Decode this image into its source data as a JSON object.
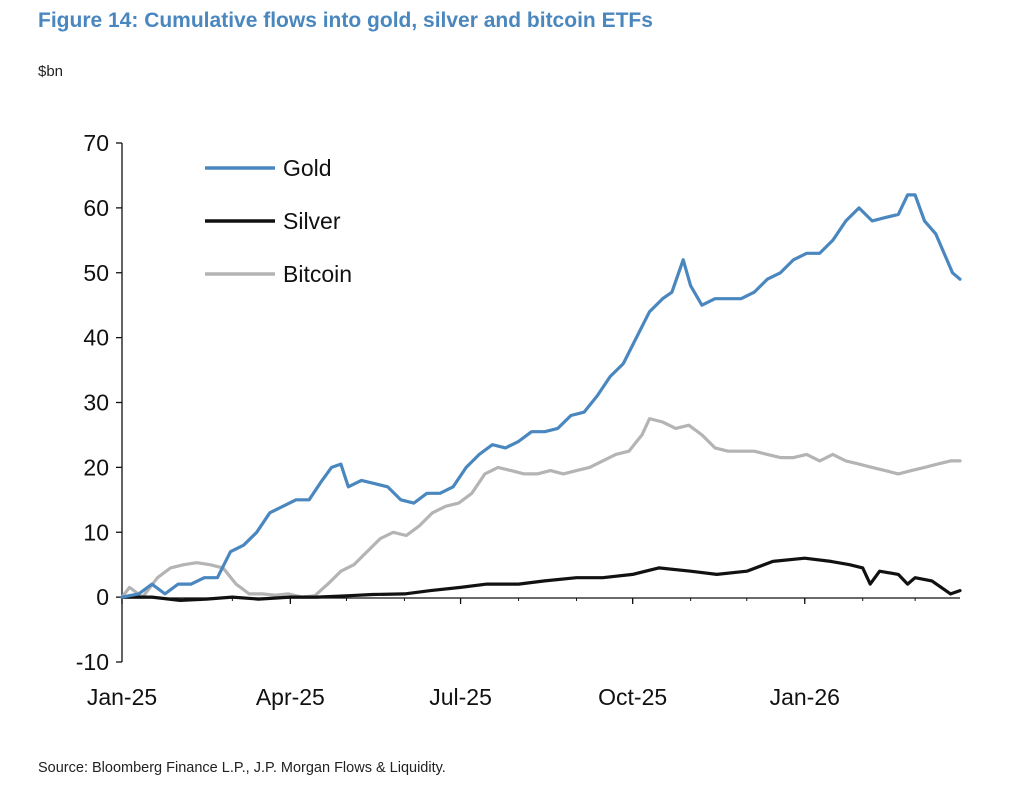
{
  "figure": {
    "title": "Figure 14: Cumulative flows into gold, silver and bitcoin ETFs",
    "unit": "$bn",
    "source": "Source: Bloomberg Finance L.P., J.P. Morgan Flows & Liquidity."
  },
  "chart_data": {
    "type": "line",
    "title": "Figure 14: Cumulative flows into gold, silver and bitcoin ETFs",
    "ylabel": "$bn",
    "xlabel": "",
    "ylim": [
      -10,
      70
    ],
    "yticks": [
      -10,
      0,
      10,
      20,
      30,
      40,
      50,
      60,
      70
    ],
    "xlim": [
      "2025-01-01",
      "2026-03-25"
    ],
    "xticks": [
      {
        "date": "2025-01-01",
        "label": "Jan-25"
      },
      {
        "date": "2025-04-01",
        "label": "Apr-25"
      },
      {
        "date": "2025-07-01",
        "label": "Jul-25"
      },
      {
        "date": "2025-10-01",
        "label": "Oct-25"
      },
      {
        "date": "2026-01-01",
        "label": "Jan-26"
      }
    ],
    "legend_position": "top-left",
    "grid": false,
    "series": [
      {
        "name": "Gold",
        "color": "#4a87bf",
        "points": [
          [
            "2025-01-01",
            0
          ],
          [
            "2025-01-10",
            0.5
          ],
          [
            "2025-01-17",
            2
          ],
          [
            "2025-01-24",
            0.5
          ],
          [
            "2025-01-31",
            2
          ],
          [
            "2025-02-07",
            2
          ],
          [
            "2025-02-14",
            3
          ],
          [
            "2025-02-21",
            3
          ],
          [
            "2025-02-28",
            7
          ],
          [
            "2025-03-07",
            8
          ],
          [
            "2025-03-14",
            10
          ],
          [
            "2025-03-21",
            13
          ],
          [
            "2025-03-28",
            14
          ],
          [
            "2025-04-04",
            15
          ],
          [
            "2025-04-11",
            15
          ],
          [
            "2025-04-18",
            18
          ],
          [
            "2025-04-23",
            20
          ],
          [
            "2025-04-28",
            20.5
          ],
          [
            "2025-05-02",
            17
          ],
          [
            "2025-05-09",
            18
          ],
          [
            "2025-05-16",
            17.5
          ],
          [
            "2025-05-23",
            17
          ],
          [
            "2025-05-30",
            15
          ],
          [
            "2025-06-06",
            14.5
          ],
          [
            "2025-06-13",
            16
          ],
          [
            "2025-06-20",
            16
          ],
          [
            "2025-06-27",
            17
          ],
          [
            "2025-07-04",
            20
          ],
          [
            "2025-07-11",
            22
          ],
          [
            "2025-07-18",
            23.5
          ],
          [
            "2025-07-25",
            23
          ],
          [
            "2025-08-01",
            24
          ],
          [
            "2025-08-08",
            25.5
          ],
          [
            "2025-08-15",
            25.5
          ],
          [
            "2025-08-22",
            26
          ],
          [
            "2025-08-29",
            28
          ],
          [
            "2025-09-05",
            28.5
          ],
          [
            "2025-09-12",
            31
          ],
          [
            "2025-09-19",
            34
          ],
          [
            "2025-09-26",
            36
          ],
          [
            "2025-10-03",
            40
          ],
          [
            "2025-10-10",
            44
          ],
          [
            "2025-10-17",
            46
          ],
          [
            "2025-10-22",
            47
          ],
          [
            "2025-10-28",
            52
          ],
          [
            "2025-11-01",
            48
          ],
          [
            "2025-11-07",
            45
          ],
          [
            "2025-11-14",
            46
          ],
          [
            "2025-11-21",
            46
          ],
          [
            "2025-11-28",
            46
          ],
          [
            "2025-12-05",
            47
          ],
          [
            "2025-12-12",
            49
          ],
          [
            "2025-12-19",
            50
          ],
          [
            "2025-12-26",
            52
          ],
          [
            "2026-01-02",
            53
          ],
          [
            "2026-01-09",
            53
          ],
          [
            "2026-01-16",
            55
          ],
          [
            "2026-01-23",
            58
          ],
          [
            "2026-01-30",
            60
          ],
          [
            "2026-02-06",
            58
          ],
          [
            "2026-02-13",
            58.5
          ],
          [
            "2026-02-20",
            59
          ],
          [
            "2026-02-25",
            62
          ],
          [
            "2026-03-01",
            62
          ],
          [
            "2026-03-06",
            58
          ],
          [
            "2026-03-12",
            56
          ],
          [
            "2026-03-18",
            52
          ],
          [
            "2026-03-21",
            50
          ],
          [
            "2026-03-25",
            49
          ]
        ]
      },
      {
        "name": "Silver",
        "color": "#111111",
        "points": [
          [
            "2025-01-01",
            0
          ],
          [
            "2025-01-17",
            0
          ],
          [
            "2025-02-01",
            -0.5
          ],
          [
            "2025-02-15",
            -0.3
          ],
          [
            "2025-03-01",
            0
          ],
          [
            "2025-03-15",
            -0.3
          ],
          [
            "2025-04-01",
            0
          ],
          [
            "2025-04-15",
            0
          ],
          [
            "2025-05-01",
            0.2
          ],
          [
            "2025-05-15",
            0.4
          ],
          [
            "2025-06-01",
            0.5
          ],
          [
            "2025-06-15",
            1
          ],
          [
            "2025-07-01",
            1.5
          ],
          [
            "2025-07-15",
            2
          ],
          [
            "2025-08-01",
            2
          ],
          [
            "2025-08-15",
            2.5
          ],
          [
            "2025-09-01",
            3
          ],
          [
            "2025-09-15",
            3
          ],
          [
            "2025-10-01",
            3.5
          ],
          [
            "2025-10-15",
            4.5
          ],
          [
            "2025-11-01",
            4
          ],
          [
            "2025-11-15",
            3.5
          ],
          [
            "2025-12-01",
            4
          ],
          [
            "2025-12-15",
            5.5
          ],
          [
            "2026-01-01",
            6
          ],
          [
            "2026-01-15",
            5.5
          ],
          [
            "2026-01-25",
            5
          ],
          [
            "2026-02-01",
            4.5
          ],
          [
            "2026-02-05",
            2
          ],
          [
            "2026-02-10",
            4
          ],
          [
            "2026-02-20",
            3.5
          ],
          [
            "2026-02-25",
            2
          ],
          [
            "2026-03-01",
            3
          ],
          [
            "2026-03-10",
            2.5
          ],
          [
            "2026-03-20",
            0.5
          ],
          [
            "2026-03-25",
            1
          ]
        ]
      },
      {
        "name": "Bitcoin",
        "color": "#b4b4b4",
        "points": [
          [
            "2025-01-01",
            0
          ],
          [
            "2025-01-05",
            1.5
          ],
          [
            "2025-01-12",
            0
          ],
          [
            "2025-01-20",
            3
          ],
          [
            "2025-01-27",
            4.5
          ],
          [
            "2025-02-03",
            5
          ],
          [
            "2025-02-10",
            5.3
          ],
          [
            "2025-02-17",
            5
          ],
          [
            "2025-02-24",
            4.5
          ],
          [
            "2025-03-03",
            2
          ],
          [
            "2025-03-10",
            0.5
          ],
          [
            "2025-03-17",
            0.5
          ],
          [
            "2025-03-24",
            0.3
          ],
          [
            "2025-03-31",
            0.5
          ],
          [
            "2025-04-07",
            0
          ],
          [
            "2025-04-14",
            0.2
          ],
          [
            "2025-04-21",
            2
          ],
          [
            "2025-04-28",
            4
          ],
          [
            "2025-05-05",
            5
          ],
          [
            "2025-05-12",
            7
          ],
          [
            "2025-05-19",
            9
          ],
          [
            "2025-05-26",
            10
          ],
          [
            "2025-06-02",
            9.5
          ],
          [
            "2025-06-09",
            11
          ],
          [
            "2025-06-16",
            13
          ],
          [
            "2025-06-23",
            14
          ],
          [
            "2025-06-30",
            14.5
          ],
          [
            "2025-07-07",
            16
          ],
          [
            "2025-07-14",
            19
          ],
          [
            "2025-07-21",
            20
          ],
          [
            "2025-07-28",
            19.5
          ],
          [
            "2025-08-04",
            19
          ],
          [
            "2025-08-11",
            19
          ],
          [
            "2025-08-18",
            19.5
          ],
          [
            "2025-08-25",
            19
          ],
          [
            "2025-09-01",
            19.5
          ],
          [
            "2025-09-08",
            20
          ],
          [
            "2025-09-15",
            21
          ],
          [
            "2025-09-22",
            22
          ],
          [
            "2025-09-29",
            22.5
          ],
          [
            "2025-10-06",
            25
          ],
          [
            "2025-10-10",
            27.5
          ],
          [
            "2025-10-17",
            27
          ],
          [
            "2025-10-24",
            26
          ],
          [
            "2025-10-31",
            26.5
          ],
          [
            "2025-11-07",
            25
          ],
          [
            "2025-11-14",
            23
          ],
          [
            "2025-11-21",
            22.5
          ],
          [
            "2025-11-28",
            22.5
          ],
          [
            "2025-12-05",
            22.5
          ],
          [
            "2025-12-12",
            22
          ],
          [
            "2025-12-19",
            21.5
          ],
          [
            "2025-12-26",
            21.5
          ],
          [
            "2026-01-02",
            22
          ],
          [
            "2026-01-09",
            21
          ],
          [
            "2026-01-16",
            22
          ],
          [
            "2026-01-23",
            21
          ],
          [
            "2026-01-30",
            20.5
          ],
          [
            "2026-02-06",
            20
          ],
          [
            "2026-02-13",
            19.5
          ],
          [
            "2026-02-20",
            19
          ],
          [
            "2026-02-27",
            19.5
          ],
          [
            "2026-03-06",
            20
          ],
          [
            "2026-03-13",
            20.5
          ],
          [
            "2026-03-20",
            21
          ],
          [
            "2026-03-25",
            21
          ]
        ]
      }
    ]
  }
}
